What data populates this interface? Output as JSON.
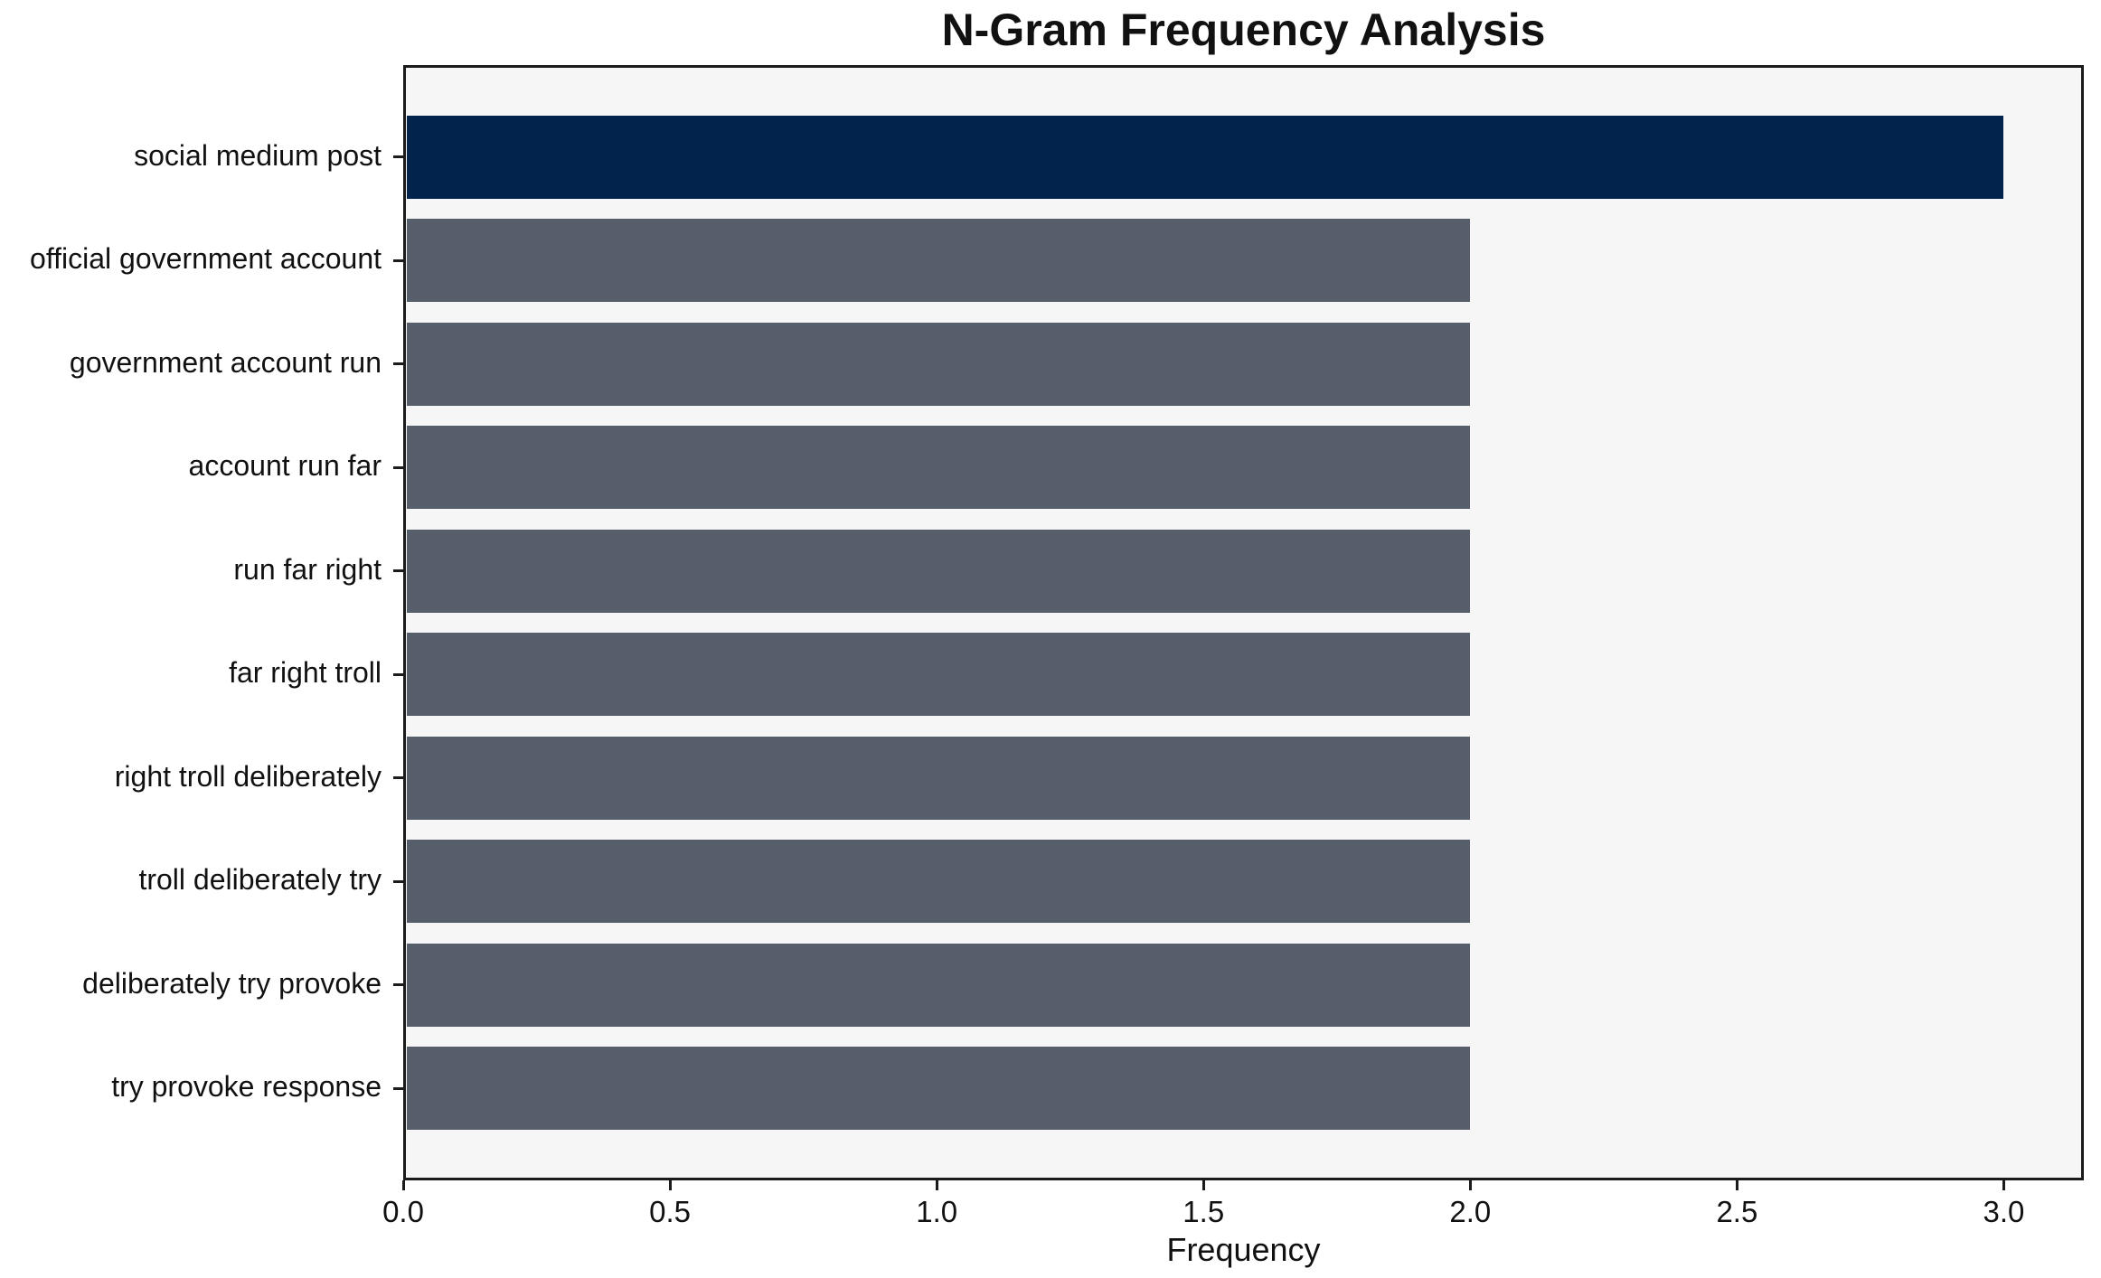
{
  "chart_data": {
    "type": "bar",
    "orientation": "horizontal",
    "title": "N-Gram Frequency Analysis",
    "xlabel": "Frequency",
    "ylabel": "",
    "categories": [
      "social medium post",
      "official government account",
      "government account run",
      "account run far",
      "run far right",
      "far right troll",
      "right troll deliberately",
      "troll deliberately try",
      "deliberately try provoke",
      "try provoke response"
    ],
    "values": [
      3,
      2,
      2,
      2,
      2,
      2,
      2,
      2,
      2,
      2
    ],
    "bar_colors": [
      "#02234c",
      "#565d6b",
      "#565d6b",
      "#565d6b",
      "#565d6b",
      "#565d6b",
      "#565d6b",
      "#565d6b",
      "#565d6b",
      "#565d6b"
    ],
    "xlim": [
      0,
      3.15
    ],
    "xticks": [
      0.0,
      0.5,
      1.0,
      1.5,
      2.0,
      2.5,
      3.0
    ],
    "xtick_labels": [
      "0.0",
      "0.5",
      "1.0",
      "1.5",
      "2.0",
      "2.5",
      "3.0"
    ],
    "grid": false,
    "legend_position": "none",
    "plot_background": "#f6f6f7",
    "figure_background": "#ffffff",
    "highlight_color": "#02234c",
    "default_bar_color": "#565d6b",
    "spine_color": "#1b1b1b"
  }
}
